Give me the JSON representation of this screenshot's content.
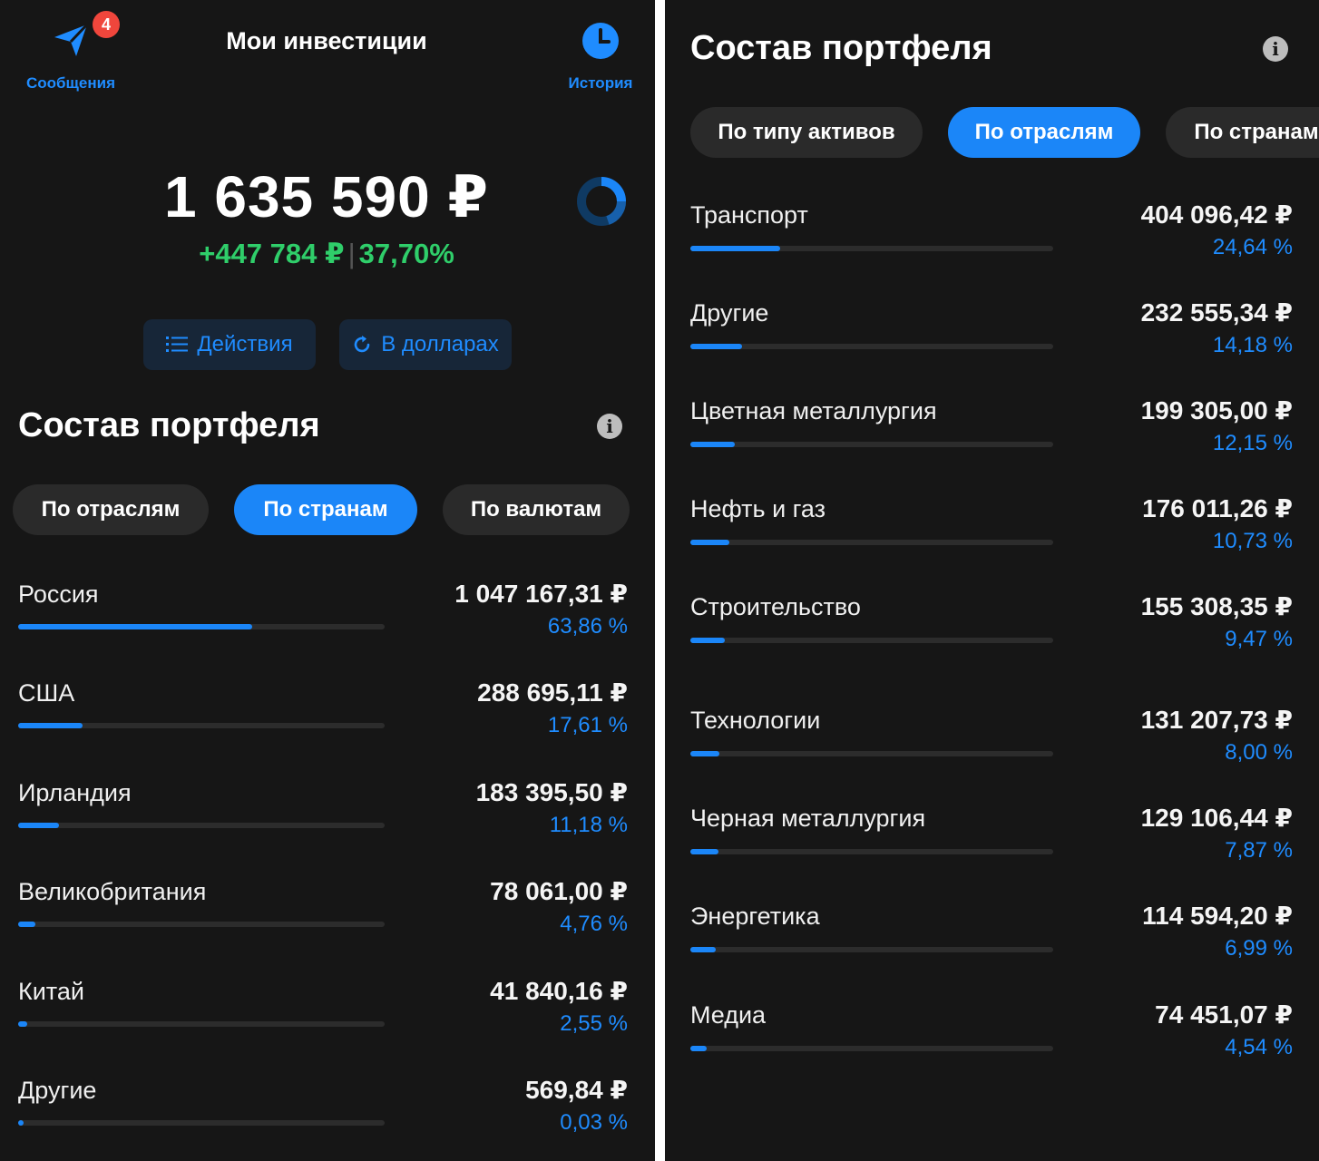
{
  "left": {
    "header": {
      "messages_label": "Сообщения",
      "messages_badge": "4",
      "title": "Мои инвестиции",
      "history_label": "История"
    },
    "summary": {
      "total": "1 635 590 ₽",
      "gain_abs": "+447 784 ₽",
      "gain_pct": "37,70%"
    },
    "actions": {
      "actions_label": "Действия",
      "dollars_label": "В долларах"
    },
    "portfolio": {
      "title": "Состав портфеля",
      "tabs": [
        {
          "label": "По отраслям",
          "active": false
        },
        {
          "label": "По странам",
          "active": true
        },
        {
          "label": "По валютам",
          "active": false
        }
      ],
      "rows": [
        {
          "label": "Россия",
          "amount": "1 047 167,31 ₽",
          "percent": "63,86 %",
          "share": 0.6386
        },
        {
          "label": "США",
          "amount": "288 695,11 ₽",
          "percent": "17,61 %",
          "share": 0.1761
        },
        {
          "label": "Ирландия",
          "amount": "183 395,50 ₽",
          "percent": "11,18 %",
          "share": 0.1118
        },
        {
          "label": "Великобритания",
          "amount": "78 061,00 ₽",
          "percent": "4,76 %",
          "share": 0.0476
        },
        {
          "label": "Китай",
          "amount": "41 840,16 ₽",
          "percent": "2,55 %",
          "share": 0.0255
        },
        {
          "label": "Другие",
          "amount": "569,84 ₽",
          "percent": "0,03 %",
          "share": 0.0003
        }
      ]
    }
  },
  "right": {
    "portfolio": {
      "title": "Состав портфеля",
      "tabs": [
        {
          "label": "По типу активов",
          "active": false
        },
        {
          "label": "По отраслям",
          "active": true
        },
        {
          "label": "По странам",
          "active": false
        }
      ],
      "rows": [
        {
          "label": "Транспорт",
          "amount": "404 096,42 ₽",
          "percent": "24,64 %",
          "share": 0.2464
        },
        {
          "label": "Другие",
          "amount": "232 555,34 ₽",
          "percent": "14,18 %",
          "share": 0.1418
        },
        {
          "label": "Цветная металлургия",
          "amount": "199 305,00 ₽",
          "percent": "12,15 %",
          "share": 0.1215
        },
        {
          "label": "Нефть и газ",
          "amount": "176 011,26 ₽",
          "percent": "10,73 %",
          "share": 0.1073
        },
        {
          "label": "Строительство",
          "amount": "155 308,35 ₽",
          "percent": "9,47 %",
          "share": 0.0947
        },
        {
          "label": "Технологии",
          "amount": "131 207,73 ₽",
          "percent": "8,00 %",
          "share": 0.08
        },
        {
          "label": "Черная металлургия",
          "amount": "129 106,44 ₽",
          "percent": "7,87 %",
          "share": 0.0787
        },
        {
          "label": "Энергетика",
          "amount": "114 594,20 ₽",
          "percent": "6,99 %",
          "share": 0.0699
        },
        {
          "label": "Медиа",
          "amount": "74 451,07 ₽",
          "percent": "4,54 %",
          "share": 0.0454
        }
      ]
    }
  },
  "icons": {
    "messages": "paper-plane-icon",
    "history": "clock-icon",
    "donut": "donut-chart-icon",
    "actions": "list-icon",
    "dollars": "refresh-icon",
    "info": "info-icon"
  },
  "colors": {
    "background": "#161616",
    "accent": "#1b86f8",
    "gain": "#2fce6a",
    "badge": "#f0463c",
    "chip_inactive": "#2a2a2a"
  }
}
